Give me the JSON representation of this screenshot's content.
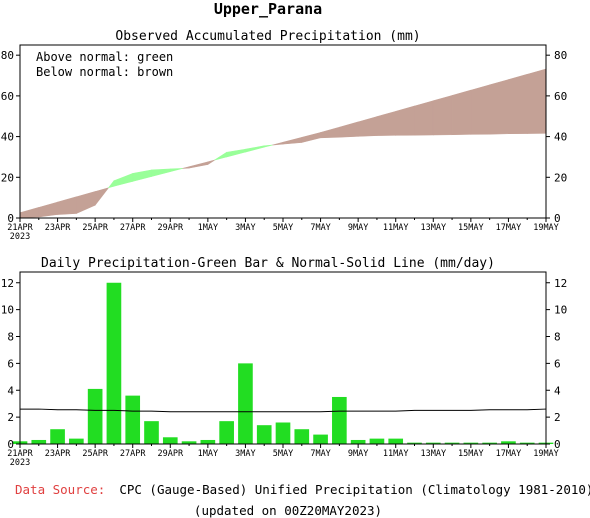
{
  "page_title": "Upper_Parana",
  "footer": {
    "source_label": "Data Source:",
    "source_text": "CPC (Gauge-Based) Unified Precipitation (Climatology 1981-2010)",
    "updated": "(updated on 00Z20MAY2023)",
    "source_label_color": "#e04040"
  },
  "colors": {
    "above_normal": "#99ff99",
    "below_normal": "#c4a196",
    "bar": "#22dd22",
    "line": "#000000"
  },
  "chart_data": [
    {
      "type": "area",
      "title": "Observed Accumulated Precipitation (mm)",
      "annotations": [
        "Above normal: green",
        "Below normal: brown"
      ],
      "x_labels": [
        "21APR",
        "23APR",
        "25APR",
        "27APR",
        "29APR",
        "1MAY",
        "3MAY",
        "5MAY",
        "7MAY",
        "9MAY",
        "11MAY",
        "13MAY",
        "15MAY",
        "17MAY",
        "19MAY"
      ],
      "year_label": "2023",
      "ylim": [
        0,
        85
      ],
      "yticks": [
        0,
        20,
        40,
        60,
        80
      ],
      "series": [
        {
          "name": "Observed",
          "values": [
            0.2,
            0.5,
            1.7,
            2.2,
            6.3,
            18.3,
            21.9,
            23.6,
            24.1,
            24.5,
            26.3,
            32.3,
            33.8,
            35.5,
            36.3,
            37.1,
            39.4,
            39.7,
            40.1,
            40.5,
            40.6,
            40.7,
            40.8,
            40.9,
            41.1,
            41.2,
            41.4,
            41.5,
            41.6
          ]
        },
        {
          "name": "Normal",
          "values": [
            2.6,
            5.2,
            7.8,
            10.4,
            13.0,
            15.6,
            18.0,
            20.4,
            22.8,
            25.2,
            27.6,
            30.0,
            32.4,
            34.8,
            37.2,
            39.6,
            42.0,
            44.6,
            47.2,
            49.8,
            52.4,
            55.0,
            57.6,
            60.2,
            62.8,
            65.4,
            68.0,
            70.6,
            73.2
          ]
        }
      ]
    },
    {
      "type": "bar",
      "title": "Daily Precipitation-Green Bar & Normal-Solid Line (mm/day)",
      "x_labels": [
        "21APR",
        "23APR",
        "25APR",
        "27APR",
        "29APR",
        "1MAY",
        "3MAY",
        "5MAY",
        "7MAY",
        "9MAY",
        "11MAY",
        "13MAY",
        "15MAY",
        "17MAY",
        "19MAY"
      ],
      "year_label": "2023",
      "ylim": [
        0,
        12.8
      ],
      "yticks": [
        0,
        2,
        4,
        6,
        8,
        10,
        12
      ],
      "series": [
        {
          "name": "Daily",
          "values": [
            0.2,
            0.3,
            1.1,
            0.4,
            4.1,
            12.0,
            3.6,
            1.7,
            0.5,
            0.2,
            0.3,
            1.7,
            6.0,
            1.4,
            1.6,
            1.1,
            0.7,
            3.5,
            0.3,
            0.4,
            0.4,
            0.1,
            0.1,
            0.1,
            0.1,
            0.1,
            0.2,
            0.1,
            0.1
          ]
        },
        {
          "name": "Normal",
          "values": [
            2.6,
            2.6,
            2.55,
            2.55,
            2.5,
            2.5,
            2.45,
            2.45,
            2.4,
            2.4,
            2.4,
            2.4,
            2.4,
            2.4,
            2.4,
            2.4,
            2.4,
            2.45,
            2.45,
            2.45,
            2.45,
            2.5,
            2.5,
            2.5,
            2.5,
            2.55,
            2.55,
            2.55,
            2.6
          ]
        }
      ]
    }
  ]
}
